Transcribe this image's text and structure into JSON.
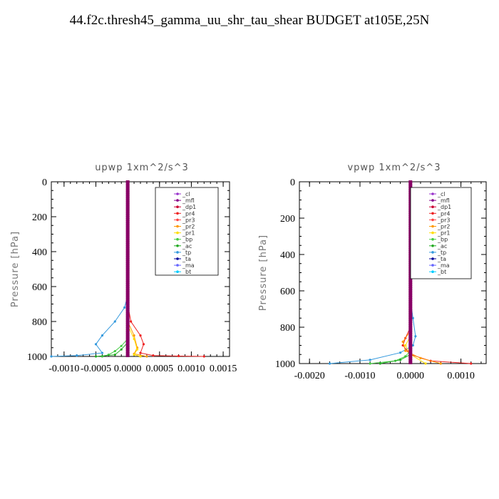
{
  "title": "44.f2c.thresh45_gamma_uu_shr_tau_shear  BUDGET at105E,25N",
  "colors": {
    "_cl": "#9933cc",
    "_mfl": "#880088",
    "_dp1": "#cc0033",
    "_pr4": "#ee2222",
    "_pr3": "#ff4444",
    "_pr2": "#ff9900",
    "_pr1": "#ffdd00",
    "_bp": "#44cc44",
    "_ac": "#22aa22",
    "_tp": "#3399dd",
    "_ta": "#000099",
    "_ma": "#6666ff",
    "_bt": "#00ccff"
  },
  "chart_data": [
    {
      "type": "line",
      "title": "upwp  1xm^2/s^3",
      "ylabel": "Pressure [hPa]",
      "xlim": [
        -0.0012,
        0.0016
      ],
      "ylim": [
        1000,
        0
      ],
      "xticks": [
        -0.001,
        -0.0005,
        0,
        0.0005,
        0.001,
        0.0015
      ],
      "xtick_labels": [
        "-0.0010",
        "-0.0005",
        "0.0000",
        "0.0005",
        "0.0010",
        "0.0015"
      ],
      "yticks": [
        0,
        200,
        400,
        600,
        800,
        1000
      ],
      "ytick_labels": [
        "0",
        "200",
        "400",
        "600",
        "800",
        "1000"
      ],
      "legend": [
        "_cl",
        "_mfl",
        "_dp1",
        "_pr4",
        "_pr3",
        "_pr2",
        "_pr1",
        "_bp",
        "_ac",
        "_tp",
        "_ta",
        "_ma",
        "_bt"
      ],
      "legend_position": "top-right",
      "series": [
        {
          "name": "_tp",
          "x": [
            0,
            0,
            -5e-05,
            -0.0002,
            -0.0004,
            -0.0005,
            -0.0004,
            -0.0008,
            -0.0012
          ],
          "y": [
            0,
            650,
            720,
            800,
            880,
            930,
            980,
            995,
            1000
          ]
        },
        {
          "name": "_pr4",
          "x": [
            0,
            0,
            5e-05,
            0.0002,
            0.00025,
            0.0002,
            0.0004,
            0.0008,
            0.0012
          ],
          "y": [
            0,
            700,
            800,
            880,
            930,
            980,
            995,
            998,
            1000
          ]
        },
        {
          "name": "_pr2",
          "x": [
            0,
            0,
            0.0001,
            0.00015,
            0.0001,
            0.0003
          ],
          "y": [
            0,
            800,
            880,
            950,
            985,
            1000
          ]
        },
        {
          "name": "_pr1",
          "x": [
            0,
            0,
            0.0001,
            0.00015,
            0.0001,
            0.0002
          ],
          "y": [
            0,
            820,
            900,
            960,
            990,
            1000
          ]
        },
        {
          "name": "_bp",
          "x": [
            0,
            0,
            -0.0001,
            -0.0002,
            -0.0003,
            -0.0004
          ],
          "y": [
            0,
            900,
            940,
            970,
            990,
            1000
          ]
        },
        {
          "name": "_ac",
          "x": [
            0,
            0,
            -0.0001,
            -0.0002,
            -0.0005
          ],
          "y": [
            0,
            920,
            960,
            990,
            1000
          ]
        },
        {
          "name": "_mfl",
          "x": [
            0,
            0
          ],
          "y": [
            0,
            1000
          ]
        },
        {
          "name": "_dp1",
          "x": [
            0,
            0
          ],
          "y": [
            0,
            1000
          ]
        },
        {
          "name": "_cl",
          "x": [
            0,
            0
          ],
          "y": [
            0,
            1000
          ]
        }
      ]
    },
    {
      "type": "line",
      "title": "vpwp  1xm^2/s^3",
      "ylabel": "Pressure [hPa]",
      "xlim": [
        -0.0022,
        0.0015
      ],
      "ylim": [
        1000,
        0
      ],
      "xticks": [
        -0.002,
        -0.001,
        0,
        0.001
      ],
      "xtick_labels": [
        "-0.0020",
        "-0.0010",
        "0.0000",
        "0.0010"
      ],
      "yticks": [
        0,
        200,
        400,
        600,
        800,
        1000
      ],
      "ytick_labels": [
        "0",
        "200",
        "400",
        "600",
        "800",
        "1000"
      ],
      "legend": [
        "_cl",
        "_mfl",
        "_dp1",
        "_pr4",
        "_pr3",
        "_pr2",
        "_pr1",
        "_bp",
        "_ac",
        "_tp",
        "_ta",
        "_ma",
        "_bt"
      ],
      "legend_position": "top-right",
      "series": [
        {
          "name": "_tp",
          "x": [
            0,
            0,
            5e-05,
            0.0001,
            5e-05,
            -0.0002,
            -0.0008,
            -0.0016
          ],
          "y": [
            0,
            650,
            750,
            850,
            900,
            940,
            980,
            1000
          ]
        },
        {
          "name": "_pr4",
          "x": [
            0,
            0,
            -0.0001,
            -0.00015,
            0,
            0.0004,
            0.0012
          ],
          "y": [
            0,
            800,
            860,
            900,
            950,
            985,
            1000
          ]
        },
        {
          "name": "_pr2",
          "x": [
            0,
            0,
            -0.00015,
            -0.0001,
            0.0002,
            0.0006
          ],
          "y": [
            0,
            820,
            880,
            930,
            970,
            1000
          ]
        },
        {
          "name": "_pr1",
          "x": [
            0,
            0,
            -0.0001,
            0,
            0.0003
          ],
          "y": [
            0,
            850,
            900,
            950,
            1000
          ]
        },
        {
          "name": "_bp",
          "x": [
            0,
            0,
            -0.0001,
            -0.0003,
            -0.0008
          ],
          "y": [
            0,
            930,
            960,
            985,
            1000
          ]
        },
        {
          "name": "_ac",
          "x": [
            0,
            0,
            -0.0002,
            -0.0006
          ],
          "y": [
            0,
            950,
            980,
            1000
          ]
        },
        {
          "name": "_mfl",
          "x": [
            0,
            0
          ],
          "y": [
            0,
            1000
          ]
        },
        {
          "name": "_dp1",
          "x": [
            0,
            0
          ],
          "y": [
            0,
            1000
          ]
        },
        {
          "name": "_cl",
          "x": [
            0,
            0
          ],
          "y": [
            0,
            1000
          ]
        }
      ]
    }
  ]
}
